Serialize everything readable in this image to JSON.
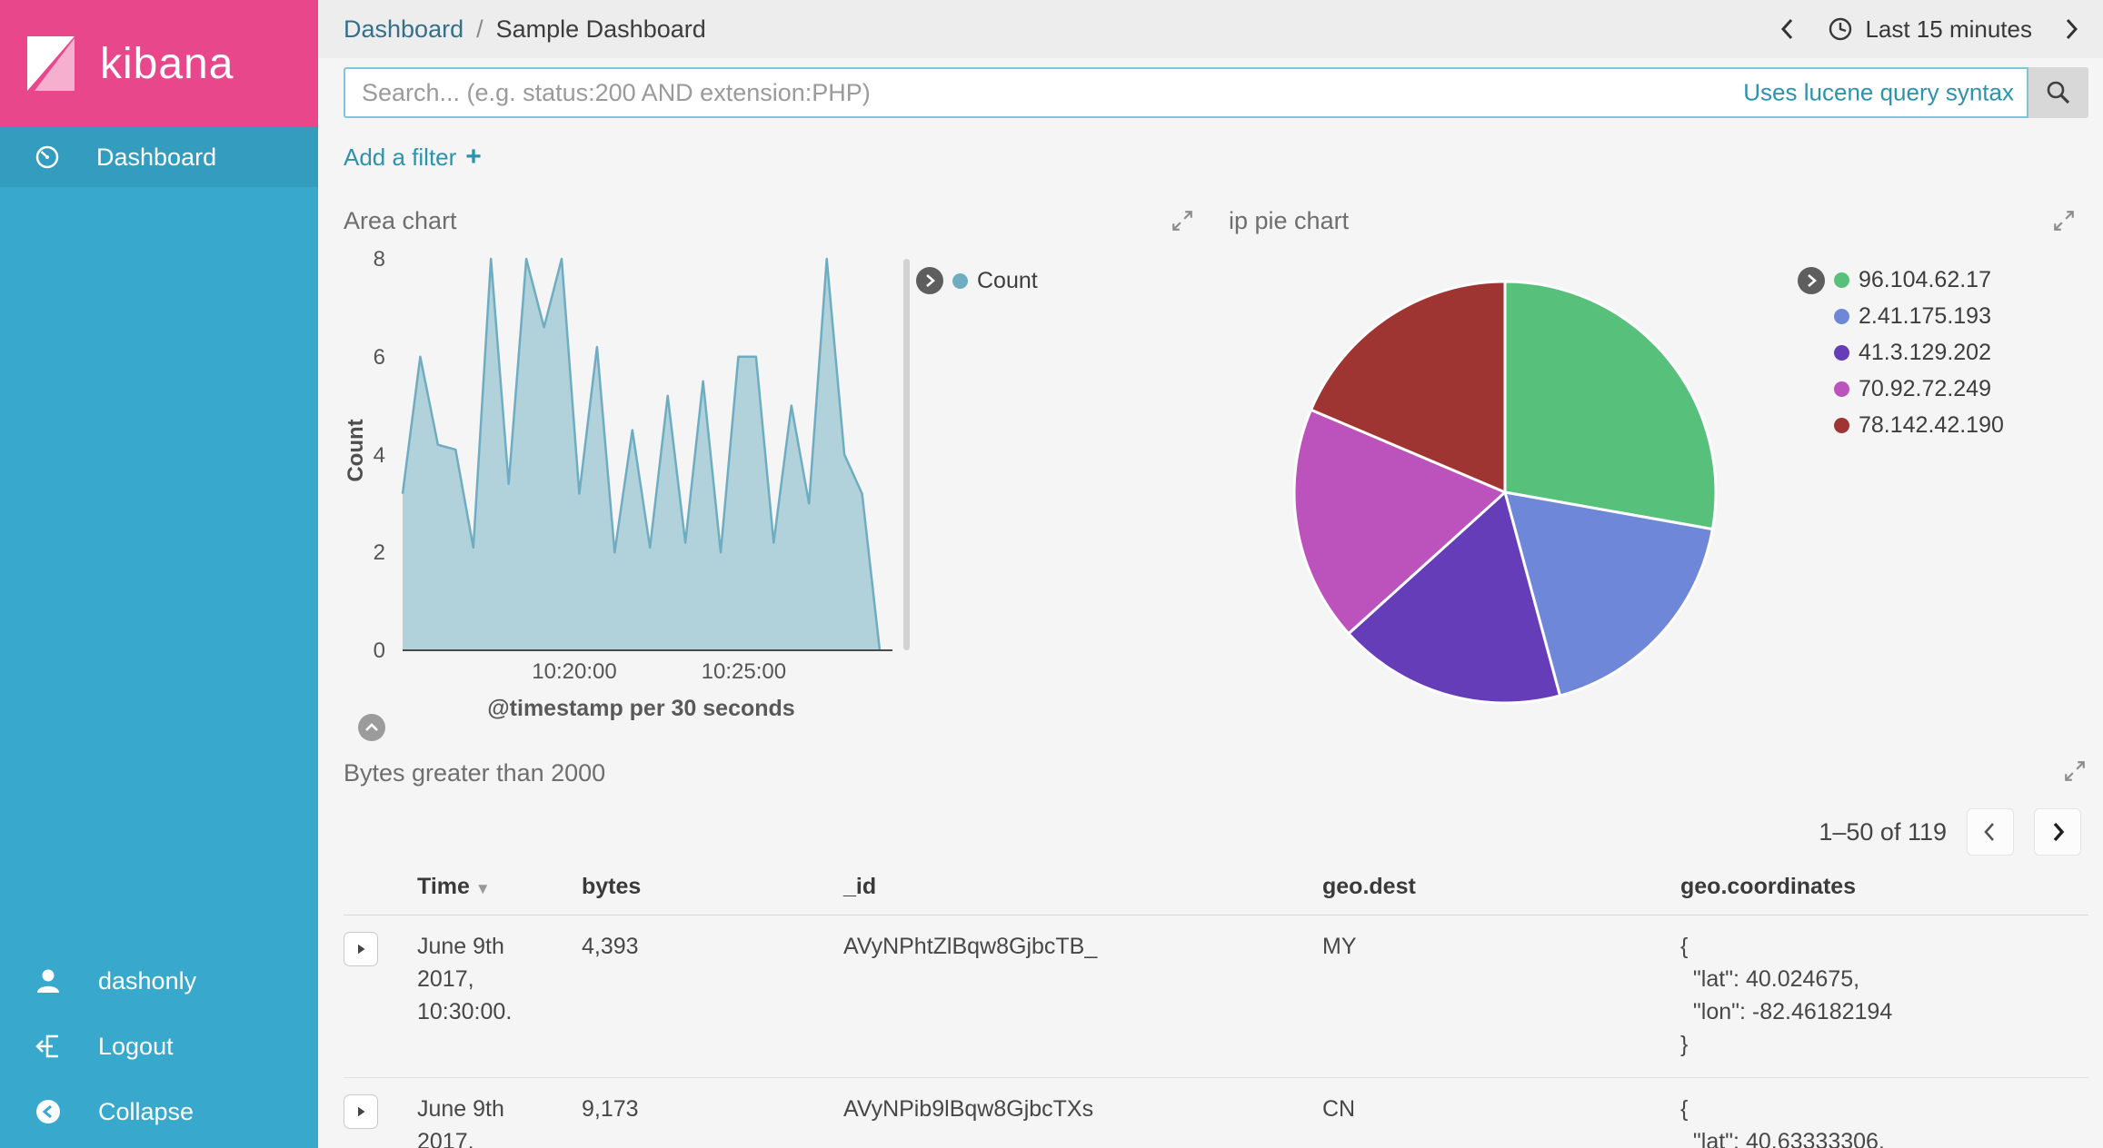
{
  "colors": {
    "brand_pink": "#E8478B",
    "sidebar_teal": "#38A8CD",
    "link_teal": "#2D93AD",
    "area_series": "#6eadc1"
  },
  "sidebar": {
    "logo_text": "kibana",
    "nav": [
      {
        "label": "Dashboard"
      }
    ],
    "footer": [
      {
        "label": "dashonly"
      },
      {
        "label": "Logout"
      },
      {
        "label": "Collapse"
      }
    ]
  },
  "topbar": {
    "breadcrumb_parent": "Dashboard",
    "breadcrumb_separator": "/",
    "breadcrumb_current": "Sample Dashboard",
    "time_picker": "Last 15 minutes"
  },
  "search": {
    "placeholder": "Search... (e.g. status:200 AND extension:PHP)",
    "syntax_link": "Uses lucene query syntax"
  },
  "filter": {
    "add_label": "Add a filter",
    "plus": "+"
  },
  "panels": {
    "area": {
      "title": "Area chart"
    },
    "pie": {
      "title": "ip pie chart"
    },
    "table": {
      "title": "Bytes greater than 2000",
      "pagination": "1–50 of 119",
      "columns": [
        "Time",
        "bytes",
        "_id",
        "geo.dest",
        "geo.coordinates"
      ],
      "rows": [
        {
          "time": "June 9th 2017, 10:30:00.",
          "bytes": "4,393",
          "id": "AVyNPhtZlBqw8GjbcTB_",
          "dest": "MY",
          "coords": "{\n  \"lat\": 40.024675,\n  \"lon\": -82.46182194\n}"
        },
        {
          "time": "June 9th 2017,",
          "bytes": "9,173",
          "id": "AVyNPib9lBqw8GjbcTXs",
          "dest": "CN",
          "coords": "{\n  \"lat\": 40.63333306,"
        }
      ]
    }
  },
  "chart_data": [
    {
      "type": "area",
      "title": "Area chart",
      "xlabel": "@timestamp per 30 seconds",
      "ylabel": "Count",
      "ylim": [
        0,
        8
      ],
      "yticks": [
        0,
        2,
        4,
        6,
        8
      ],
      "x_ticks": [
        {
          "label": "10:20:00",
          "pos": 0.36
        },
        {
          "label": "10:25:00",
          "pos": 0.715
        }
      ],
      "series": [
        {
          "name": "Count",
          "color": "#6eadc1",
          "values": [
            3.2,
            6,
            4.2,
            4.1,
            2.1,
            8,
            3.4,
            8,
            6.6,
            8,
            3.2,
            6.2,
            2,
            4.5,
            2.1,
            5.2,
            2.2,
            5.5,
            2,
            6,
            6,
            2.2,
            5,
            3,
            8,
            4,
            3.2,
            0
          ]
        }
      ]
    },
    {
      "type": "pie",
      "title": "ip pie chart",
      "labels": [
        "96.104.62.17",
        "2.41.175.193",
        "41.3.129.202",
        "70.92.72.249",
        "78.142.42.190"
      ],
      "values": [
        27.8,
        18.0,
        17.5,
        18.1,
        18.6
      ],
      "colors": [
        "#57c17b",
        "#6f87d8",
        "#663db8",
        "#bc52bc",
        "#9e3533"
      ],
      "legend_position": "right"
    }
  ]
}
